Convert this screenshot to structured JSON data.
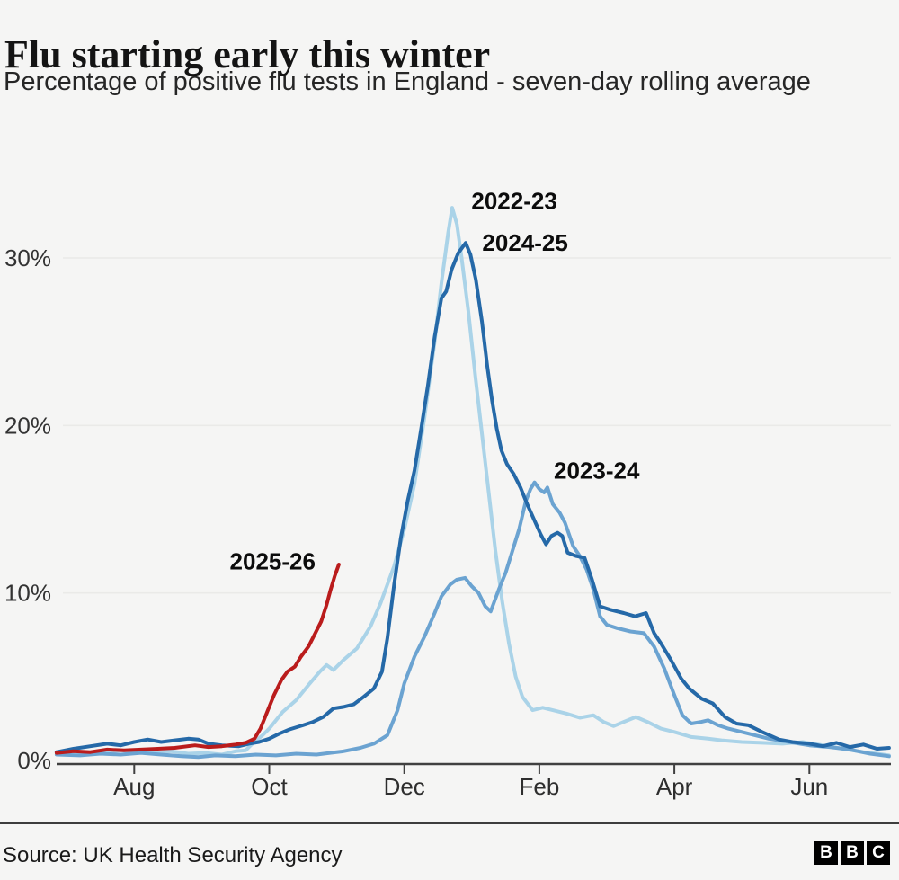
{
  "header": {},
  "footer": {
    "source": "Source: UK Health Security Agency",
    "logo_letters": [
      "B",
      "B",
      "C"
    ]
  },
  "chart_data": {
    "type": "line",
    "title": "Flu starting early this winter",
    "subtitle": "Percentage of positive flu tests in England - seven-day rolling average",
    "ylabel": "Percentage of positive flu tests",
    "unit": "%",
    "x_unit": "months_since_jul_1",
    "ylim": [
      0,
      35
    ],
    "grid": "horizontal",
    "legend_position": "inline-annotations",
    "yticks": [
      {
        "v": 0,
        "label": "0%"
      },
      {
        "v": 10,
        "label": "10%"
      },
      {
        "v": 20,
        "label": "20%"
      },
      {
        "v": 30,
        "label": "30%"
      }
    ],
    "xticks": [
      {
        "m": 1,
        "label": "Aug"
      },
      {
        "m": 3,
        "label": "Oct"
      },
      {
        "m": 5,
        "label": "Dec"
      },
      {
        "m": 7,
        "label": "Feb"
      },
      {
        "m": 9,
        "label": "Apr"
      },
      {
        "m": 11,
        "label": "Jun"
      }
    ],
    "series": [
      {
        "name": "2022-23",
        "color": "#aad3e8",
        "points": [
          [
            -0.15,
            0.5
          ],
          [
            0.1,
            0.55
          ],
          [
            0.3,
            0.45
          ],
          [
            0.55,
            0.5
          ],
          [
            0.8,
            0.6
          ],
          [
            1.05,
            0.5
          ],
          [
            1.3,
            0.45
          ],
          [
            1.55,
            0.55
          ],
          [
            1.8,
            0.4
          ],
          [
            2.05,
            0.45
          ],
          [
            2.3,
            0.35
          ],
          [
            2.5,
            0.55
          ],
          [
            2.65,
            0.6
          ],
          [
            2.75,
            1.0
          ],
          [
            2.9,
            1.5
          ],
          [
            3.0,
            1.9
          ],
          [
            3.2,
            2.9
          ],
          [
            3.4,
            3.6
          ],
          [
            3.6,
            4.6
          ],
          [
            3.75,
            5.3
          ],
          [
            3.85,
            5.7
          ],
          [
            3.95,
            5.4
          ],
          [
            4.1,
            6.0
          ],
          [
            4.3,
            6.7
          ],
          [
            4.5,
            8.0
          ],
          [
            4.65,
            9.4
          ],
          [
            4.85,
            11.6
          ],
          [
            5.0,
            13.8
          ],
          [
            5.15,
            16.5
          ],
          [
            5.3,
            20.5
          ],
          [
            5.45,
            25.0
          ],
          [
            5.55,
            28.5
          ],
          [
            5.65,
            31.5
          ],
          [
            5.71,
            33.0
          ],
          [
            5.78,
            32.0
          ],
          [
            5.85,
            30.0
          ],
          [
            5.95,
            26.8
          ],
          [
            6.05,
            23.0
          ],
          [
            6.15,
            19.5
          ],
          [
            6.25,
            16.0
          ],
          [
            6.35,
            12.5
          ],
          [
            6.45,
            9.5
          ],
          [
            6.55,
            7.0
          ],
          [
            6.65,
            5.0
          ],
          [
            6.75,
            3.8
          ],
          [
            6.9,
            3.0
          ],
          [
            7.05,
            3.15
          ],
          [
            7.2,
            3.0
          ],
          [
            7.4,
            2.8
          ],
          [
            7.6,
            2.55
          ],
          [
            7.8,
            2.7
          ],
          [
            7.95,
            2.3
          ],
          [
            8.1,
            2.05
          ],
          [
            8.25,
            2.3
          ],
          [
            8.43,
            2.6
          ],
          [
            8.6,
            2.3
          ],
          [
            8.8,
            1.9
          ],
          [
            9.0,
            1.7
          ],
          [
            9.25,
            1.4
          ],
          [
            9.5,
            1.3
          ],
          [
            9.7,
            1.2
          ],
          [
            10.0,
            1.1
          ],
          [
            10.3,
            1.05
          ],
          [
            10.6,
            1.0
          ],
          [
            10.9,
            1.1
          ],
          [
            11.2,
            0.9
          ],
          [
            11.5,
            0.7
          ],
          [
            11.8,
            0.5
          ],
          [
            12.0,
            0.4
          ],
          [
            12.18,
            0.3
          ]
        ]
      },
      {
        "name": "2023-24",
        "color": "#6ba3d1",
        "points": [
          [
            -0.15,
            0.35
          ],
          [
            0.2,
            0.3
          ],
          [
            0.5,
            0.4
          ],
          [
            0.8,
            0.35
          ],
          [
            1.1,
            0.45
          ],
          [
            1.4,
            0.35
          ],
          [
            1.7,
            0.25
          ],
          [
            1.95,
            0.2
          ],
          [
            2.2,
            0.3
          ],
          [
            2.5,
            0.25
          ],
          [
            2.8,
            0.35
          ],
          [
            3.1,
            0.3
          ],
          [
            3.4,
            0.4
          ],
          [
            3.7,
            0.35
          ],
          [
            3.9,
            0.45
          ],
          [
            4.1,
            0.55
          ],
          [
            4.35,
            0.75
          ],
          [
            4.55,
            1.0
          ],
          [
            4.75,
            1.5
          ],
          [
            4.9,
            3.0
          ],
          [
            5.0,
            4.6
          ],
          [
            5.15,
            6.2
          ],
          [
            5.3,
            7.4
          ],
          [
            5.45,
            8.8
          ],
          [
            5.55,
            9.8
          ],
          [
            5.68,
            10.5
          ],
          [
            5.78,
            10.8
          ],
          [
            5.9,
            10.9
          ],
          [
            6.0,
            10.4
          ],
          [
            6.1,
            10.0
          ],
          [
            6.2,
            9.2
          ],
          [
            6.28,
            8.9
          ],
          [
            6.4,
            10.2
          ],
          [
            6.5,
            11.2
          ],
          [
            6.6,
            12.5
          ],
          [
            6.7,
            13.8
          ],
          [
            6.8,
            15.5
          ],
          [
            6.87,
            16.2
          ],
          [
            6.93,
            16.6
          ],
          [
            7.0,
            16.2
          ],
          [
            7.07,
            16.0
          ],
          [
            7.12,
            16.3
          ],
          [
            7.2,
            15.3
          ],
          [
            7.3,
            14.8
          ],
          [
            7.38,
            14.2
          ],
          [
            7.5,
            12.8
          ],
          [
            7.6,
            12.2
          ],
          [
            7.7,
            11.4
          ],
          [
            7.8,
            10.2
          ],
          [
            7.9,
            8.6
          ],
          [
            8.0,
            8.1
          ],
          [
            8.15,
            7.9
          ],
          [
            8.35,
            7.7
          ],
          [
            8.55,
            7.6
          ],
          [
            8.7,
            6.8
          ],
          [
            8.85,
            5.5
          ],
          [
            9.0,
            3.9
          ],
          [
            9.12,
            2.7
          ],
          [
            9.25,
            2.2
          ],
          [
            9.4,
            2.3
          ],
          [
            9.5,
            2.4
          ],
          [
            9.65,
            2.1
          ],
          [
            9.8,
            1.9
          ],
          [
            10.1,
            1.6
          ],
          [
            10.4,
            1.3
          ],
          [
            10.7,
            1.1
          ],
          [
            11.0,
            0.9
          ],
          [
            11.3,
            0.8
          ],
          [
            11.6,
            0.65
          ],
          [
            11.9,
            0.4
          ],
          [
            12.18,
            0.25
          ]
        ]
      },
      {
        "name": "2024-25",
        "color": "#2569a8",
        "points": [
          [
            -0.15,
            0.5
          ],
          [
            0.1,
            0.7
          ],
          [
            0.35,
            0.85
          ],
          [
            0.6,
            1.0
          ],
          [
            0.8,
            0.9
          ],
          [
            1.0,
            1.1
          ],
          [
            1.2,
            1.25
          ],
          [
            1.4,
            1.1
          ],
          [
            1.6,
            1.2
          ],
          [
            1.8,
            1.3
          ],
          [
            1.95,
            1.25
          ],
          [
            2.1,
            1.0
          ],
          [
            2.3,
            0.9
          ],
          [
            2.55,
            0.85
          ],
          [
            2.7,
            1.0
          ],
          [
            2.85,
            1.1
          ],
          [
            3.0,
            1.3
          ],
          [
            3.15,
            1.6
          ],
          [
            3.3,
            1.85
          ],
          [
            3.5,
            2.1
          ],
          [
            3.65,
            2.3
          ],
          [
            3.8,
            2.6
          ],
          [
            3.95,
            3.1
          ],
          [
            4.1,
            3.2
          ],
          [
            4.25,
            3.35
          ],
          [
            4.4,
            3.8
          ],
          [
            4.55,
            4.3
          ],
          [
            4.67,
            5.3
          ],
          [
            4.75,
            7.3
          ],
          [
            4.85,
            10.5
          ],
          [
            4.95,
            13.3
          ],
          [
            5.05,
            15.5
          ],
          [
            5.15,
            17.3
          ],
          [
            5.25,
            19.8
          ],
          [
            5.35,
            22.4
          ],
          [
            5.45,
            25.3
          ],
          [
            5.55,
            27.6
          ],
          [
            5.62,
            28.0
          ],
          [
            5.7,
            29.3
          ],
          [
            5.8,
            30.3
          ],
          [
            5.91,
            30.9
          ],
          [
            5.98,
            30.2
          ],
          [
            6.06,
            28.7
          ],
          [
            6.15,
            26.2
          ],
          [
            6.23,
            23.5
          ],
          [
            6.3,
            21.5
          ],
          [
            6.37,
            19.8
          ],
          [
            6.44,
            18.5
          ],
          [
            6.52,
            17.7
          ],
          [
            6.62,
            17.1
          ],
          [
            6.72,
            16.3
          ],
          [
            6.82,
            15.3
          ],
          [
            6.92,
            14.4
          ],
          [
            7.02,
            13.5
          ],
          [
            7.1,
            12.9
          ],
          [
            7.18,
            13.4
          ],
          [
            7.27,
            13.6
          ],
          [
            7.34,
            13.4
          ],
          [
            7.42,
            12.4
          ],
          [
            7.55,
            12.2
          ],
          [
            7.67,
            12.1
          ],
          [
            7.78,
            10.8
          ],
          [
            7.9,
            9.2
          ],
          [
            8.05,
            9.0
          ],
          [
            8.25,
            8.8
          ],
          [
            8.42,
            8.6
          ],
          [
            8.58,
            8.8
          ],
          [
            8.7,
            7.6
          ],
          [
            8.8,
            7.0
          ],
          [
            8.95,
            6.0
          ],
          [
            9.1,
            4.9
          ],
          [
            9.22,
            4.3
          ],
          [
            9.4,
            3.7
          ],
          [
            9.57,
            3.4
          ],
          [
            9.75,
            2.6
          ],
          [
            9.92,
            2.2
          ],
          [
            10.1,
            2.1
          ],
          [
            10.3,
            1.7
          ],
          [
            10.55,
            1.25
          ],
          [
            10.75,
            1.1
          ],
          [
            11.0,
            1.0
          ],
          [
            11.2,
            0.85
          ],
          [
            11.4,
            1.05
          ],
          [
            11.6,
            0.8
          ],
          [
            11.8,
            0.95
          ],
          [
            12.0,
            0.7
          ],
          [
            12.18,
            0.75
          ]
        ]
      },
      {
        "name": "2025-26",
        "color": "#ba1c1c",
        "points": [
          [
            -0.15,
            0.45
          ],
          [
            0.1,
            0.55
          ],
          [
            0.35,
            0.5
          ],
          [
            0.6,
            0.65
          ],
          [
            0.85,
            0.6
          ],
          [
            1.1,
            0.65
          ],
          [
            1.35,
            0.7
          ],
          [
            1.6,
            0.75
          ],
          [
            1.9,
            0.9
          ],
          [
            2.1,
            0.8
          ],
          [
            2.3,
            0.85
          ],
          [
            2.5,
            0.95
          ],
          [
            2.65,
            1.05
          ],
          [
            2.78,
            1.3
          ],
          [
            2.87,
            1.9
          ],
          [
            2.97,
            2.9
          ],
          [
            3.07,
            3.9
          ],
          [
            3.18,
            4.8
          ],
          [
            3.27,
            5.3
          ],
          [
            3.38,
            5.6
          ],
          [
            3.47,
            6.2
          ],
          [
            3.58,
            6.8
          ],
          [
            3.67,
            7.5
          ],
          [
            3.77,
            8.3
          ],
          [
            3.85,
            9.3
          ],
          [
            3.91,
            10.2
          ],
          [
            3.97,
            11.0
          ],
          [
            4.03,
            11.7
          ]
        ]
      }
    ],
    "annotations": [
      {
        "text": "2022-23",
        "m": 6.63,
        "pct": 33.4
      },
      {
        "text": "2024-25",
        "m": 6.79,
        "pct": 30.9
      },
      {
        "text": "2023-24",
        "m": 7.85,
        "pct": 17.3
      },
      {
        "text": "2025-26",
        "m": 3.05,
        "pct": 11.9
      }
    ]
  }
}
